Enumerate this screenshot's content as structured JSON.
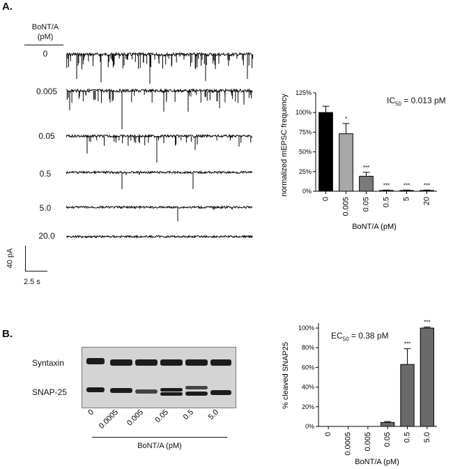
{
  "panel_a": {
    "label": "A.",
    "conc_header": "BoNT/A\n(pM)",
    "conc_header_line1": "BoNT/A",
    "conc_header_line2": "(pM)",
    "traces": [
      {
        "conc": "0"
      },
      {
        "conc": "0.005"
      },
      {
        "conc": "0.05"
      },
      {
        "conc": "0.5"
      },
      {
        "conc": "5.0"
      },
      {
        "conc": "20.0"
      }
    ],
    "scalebar": {
      "y_label": "40 pA",
      "x_label": "2.5 s"
    }
  },
  "panel_b": {
    "label": "B.",
    "blot_rows": [
      "Syntaxin",
      "SNAP-25"
    ],
    "lanes": [
      "0",
      "0.0005",
      "0.005",
      "0.05",
      "0.5",
      "5.0"
    ],
    "xlabel": "BoNT/A (pM)"
  },
  "chart_data": [
    {
      "type": "bar",
      "categories": [
        "0",
        "0.005",
        "0.05",
        "0.5",
        "5",
        "20"
      ],
      "values": [
        100,
        73,
        19,
        1,
        1,
        1
      ],
      "errors": [
        8,
        13,
        5,
        0.5,
        0.5,
        0.5
      ],
      "significance": [
        "",
        "*",
        "***",
        "***",
        "***",
        "***"
      ],
      "bar_colors": [
        "#000000",
        "#a8a8a8",
        "#7a7a7a",
        "#7a7a7a",
        "#7a7a7a",
        "#7a7a7a"
      ],
      "ylabel": "normalized mEPSC frequency",
      "xlabel": "BoNT/A (pM)",
      "yticks": [
        "0%",
        "25%",
        "50%",
        "75%",
        "100%",
        "125%"
      ],
      "ylim": [
        0,
        125
      ],
      "annotation": {
        "prefix": "IC",
        "sub": "50",
        "suffix": " = 0.013 pM"
      }
    },
    {
      "type": "bar",
      "categories": [
        "0",
        "0.0005",
        "0.005",
        "0.05",
        "0.5",
        "5.0"
      ],
      "values": [
        0,
        0,
        0,
        4,
        63,
        100
      ],
      "errors": [
        0,
        0,
        0,
        1,
        16,
        1
      ],
      "significance": [
        "",
        "",
        "",
        "",
        "***",
        "***"
      ],
      "bar_colors": [
        "#6a6a6a",
        "#6a6a6a",
        "#6a6a6a",
        "#6a6a6a",
        "#6a6a6a",
        "#6a6a6a"
      ],
      "ylabel": "% cleaved  SNAP25",
      "xlabel": "BoNT/A (pM)",
      "yticks": [
        "0%",
        "20%",
        "40%",
        "60%",
        "80%",
        "100%"
      ],
      "ylim": [
        0,
        105
      ],
      "annotation": {
        "prefix": "EC",
        "sub": "50",
        "suffix": " = 0.38 pM"
      }
    }
  ]
}
